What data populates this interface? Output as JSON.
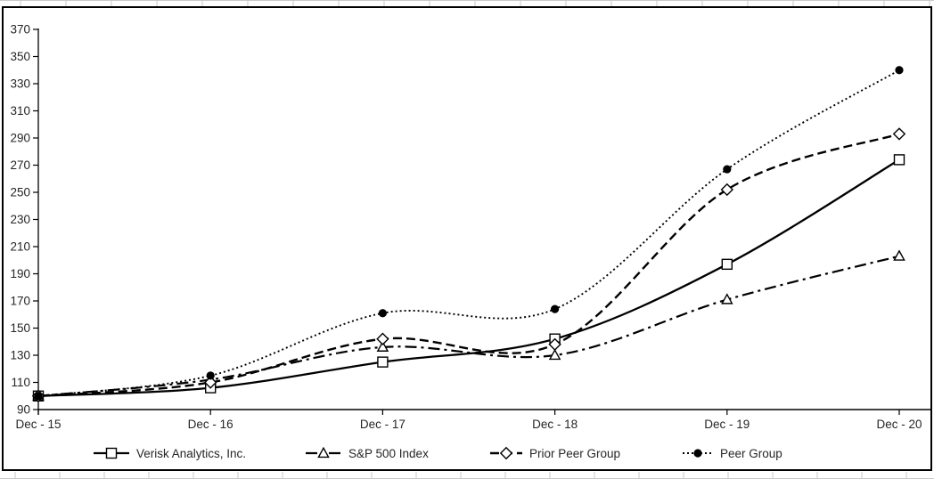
{
  "chart_data": {
    "type": "line",
    "title": "",
    "xlabel": "",
    "ylabel": "",
    "x_categories": [
      "Dec - 15",
      "Dec - 16",
      "Dec - 17",
      "Dec - 18",
      "Dec - 19",
      "Dec - 20"
    ],
    "y_axis": {
      "min": 90,
      "max": 370,
      "step": 20,
      "tick_labels": [
        "90",
        "110",
        "130",
        "150",
        "170",
        "190",
        "210",
        "230",
        "250",
        "270",
        "290",
        "310",
        "330",
        "350",
        "370"
      ]
    },
    "grid": "off",
    "legend_position": "bottom",
    "series": [
      {
        "name": "Verisk Analytics, Inc.",
        "line_style": "solid",
        "marker": "square-open",
        "values": [
          100,
          106,
          125,
          142,
          197,
          274
        ]
      },
      {
        "name": "S&P 500 Index",
        "line_style": "dashdot",
        "marker": "triangle-open",
        "values": [
          100,
          112,
          136,
          130,
          171,
          203
        ]
      },
      {
        "name": "Prior Peer Group",
        "line_style": "dashed",
        "marker": "diamond-open",
        "values": [
          100,
          110,
          142,
          138,
          252,
          293
        ]
      },
      {
        "name": "Peer Group",
        "line_style": "dotted",
        "marker": "circle-filled",
        "values": [
          100,
          115,
          161,
          164,
          267,
          340
        ]
      }
    ],
    "colors": {
      "line": "#000000",
      "text": "#262626",
      "frame": "#000000",
      "background": "#ffffff",
      "outer_gridline": "#c9c9c9"
    }
  }
}
